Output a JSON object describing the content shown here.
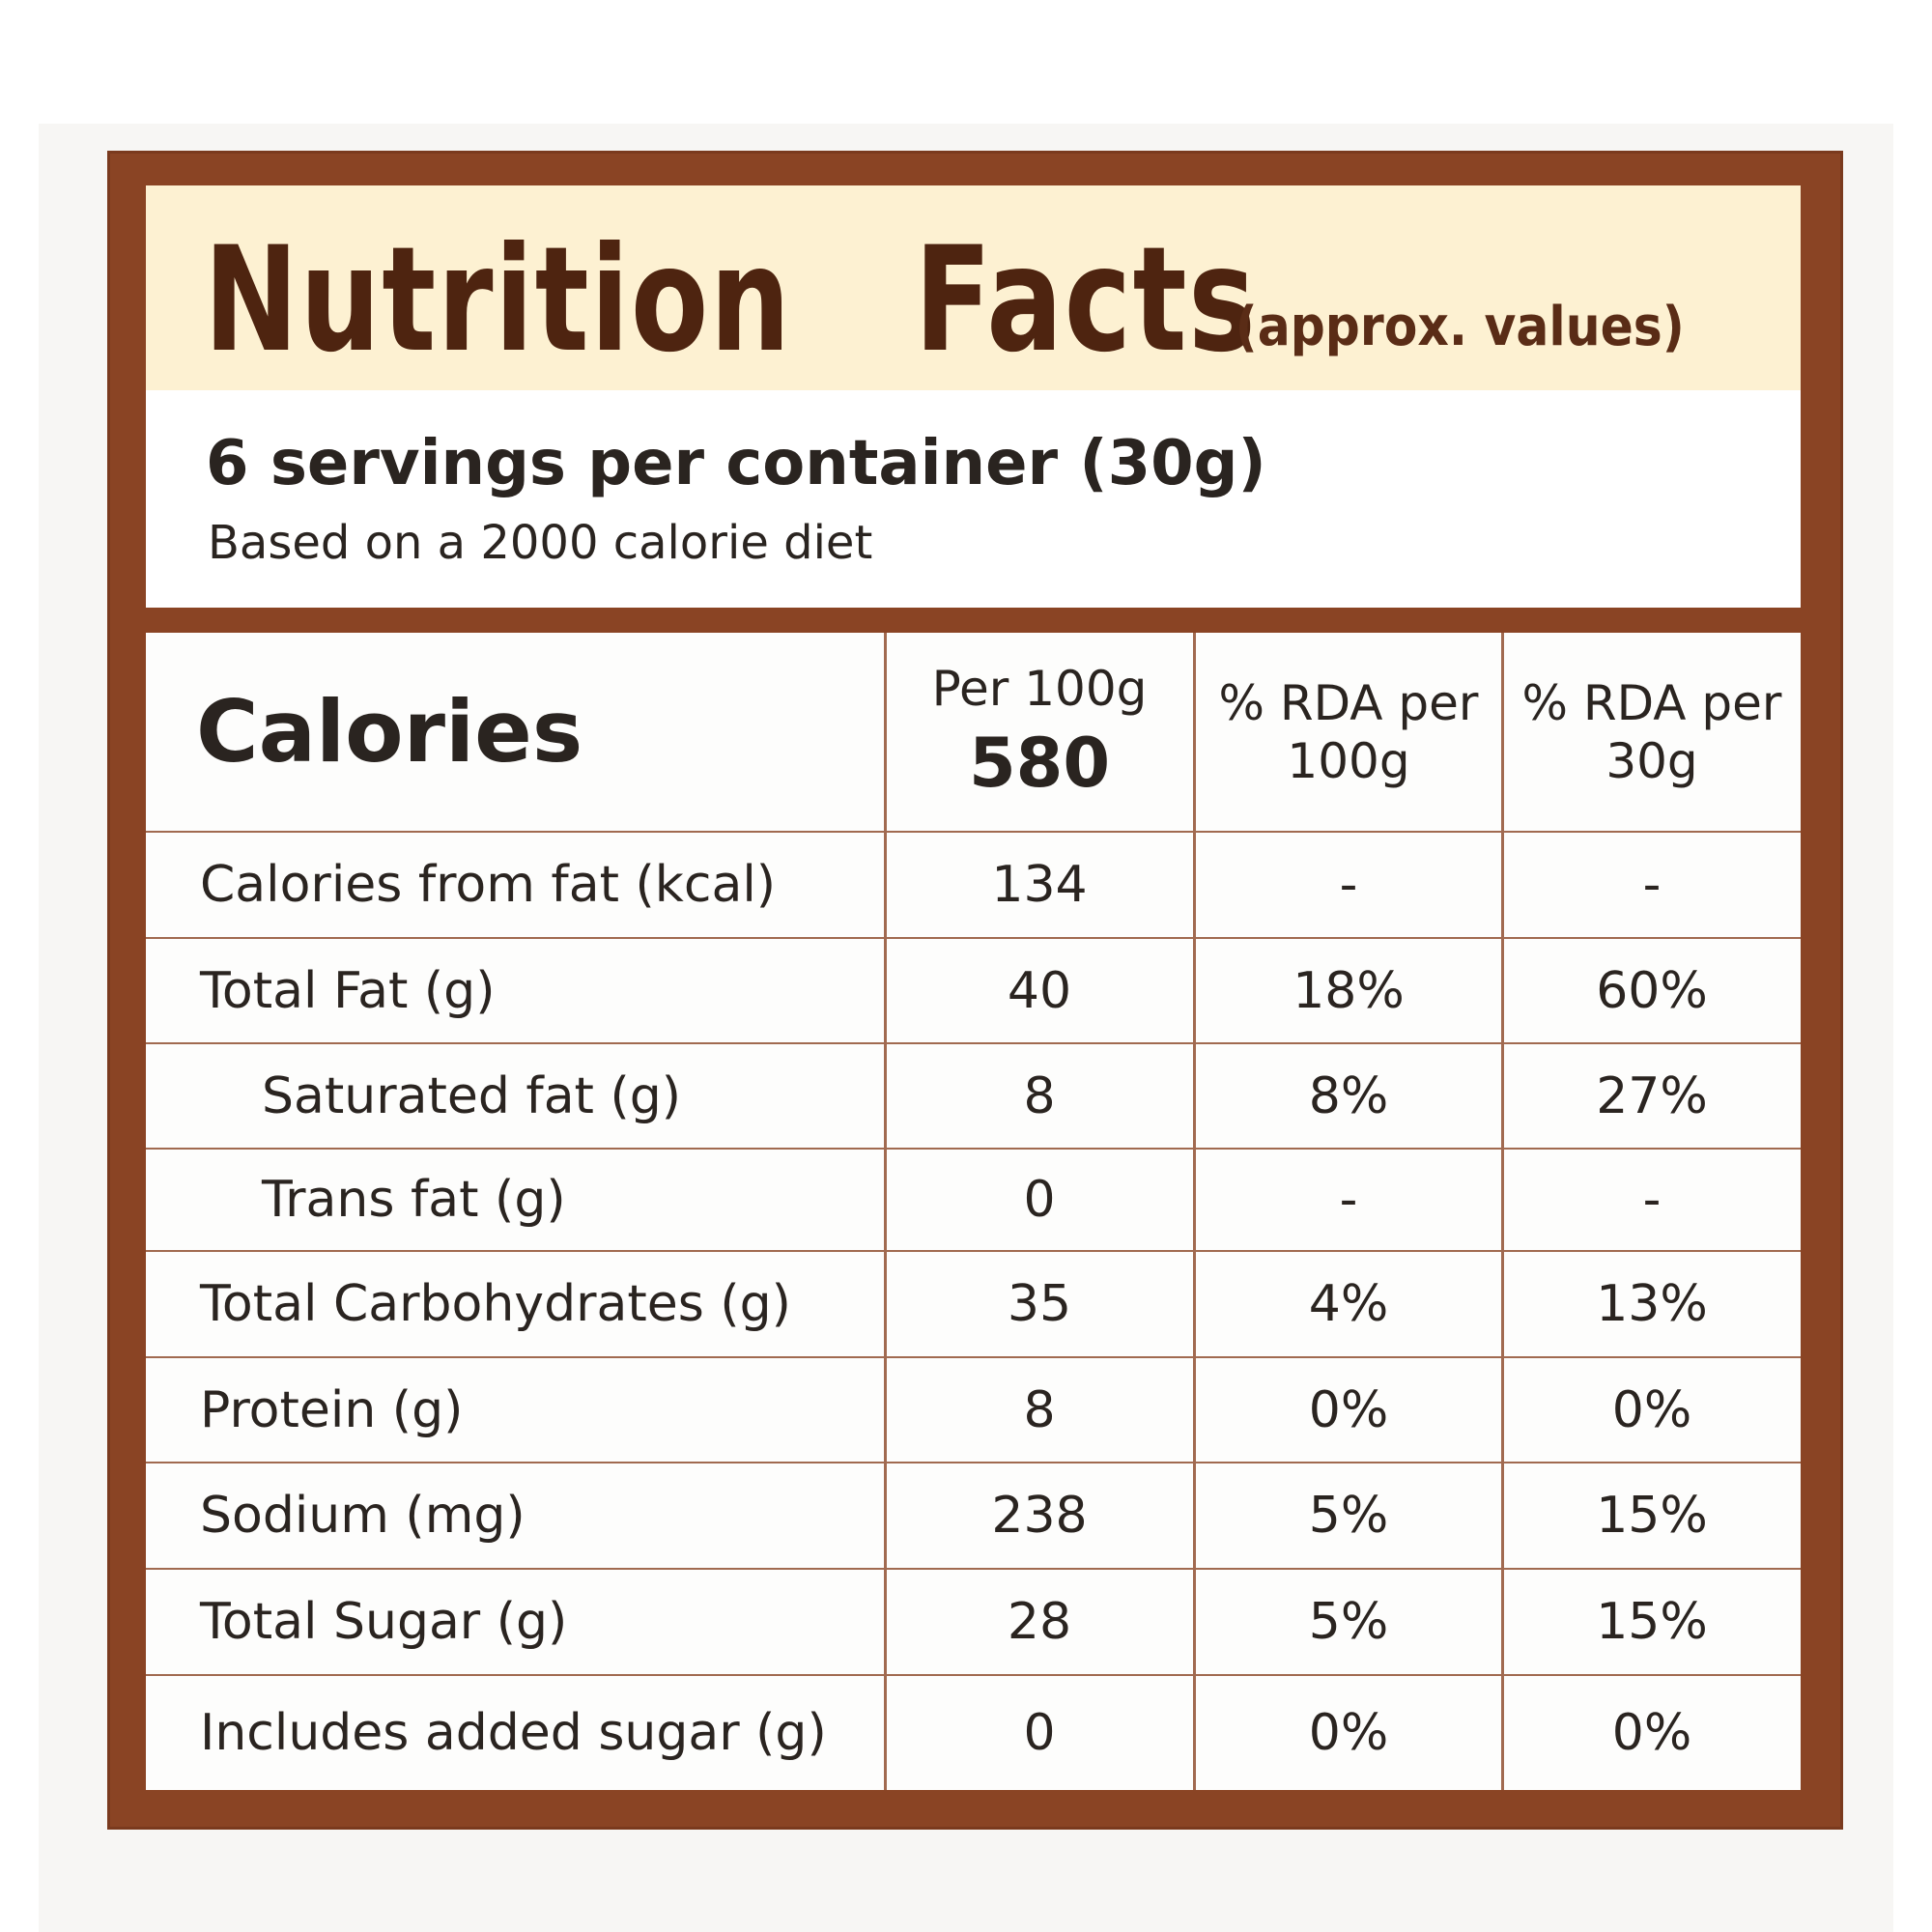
{
  "header": {
    "title": "Nutrition   Facts",
    "subtitle": "(approx. values)",
    "servings": "6 servings per container (30g)",
    "basis": "Based on a 2000 calorie diet"
  },
  "table": {
    "calories_label": "Calories",
    "col1_header": "Per 100g",
    "calories_value": "580",
    "col2_header_line1": "% RDA per",
    "col2_header_line2": "100g",
    "col3_header_line1": "% RDA per",
    "col3_header_line2": "30g",
    "rows": [
      {
        "label": "Calories from fat (kcal)",
        "per100g": "134",
        "rda100g": "-",
        "rda30g": "-"
      },
      {
        "label": "Total Fat (g)",
        "per100g": "40",
        "rda100g": "18%",
        "rda30g": "60%"
      },
      {
        "label": "Saturated fat (g)",
        "per100g": "8",
        "rda100g": "8%",
        "rda30g": "27%"
      },
      {
        "label": "Trans fat (g)",
        "per100g": "0",
        "rda100g": "-",
        "rda30g": "-"
      },
      {
        "label": "Total Carbohydrates (g)",
        "per100g": "35",
        "rda100g": "4%",
        "rda30g": "13%"
      },
      {
        "label": "Protein (g)",
        "per100g": "8",
        "rda100g": "0%",
        "rda30g": "0%"
      },
      {
        "label": "Sodium (mg)",
        "per100g": "238",
        "rda100g": "5%",
        "rda30g": "15%"
      },
      {
        "label": "Total Sugar (g)",
        "per100g": "28",
        "rda100g": "5%",
        "rda30g": "15%"
      },
      {
        "label": "Includes added sugar (g)",
        "per100g": "0",
        "rda100g": "0%",
        "rda30g": "0%"
      }
    ]
  },
  "colors": {
    "frame": "#8a4424",
    "title_band": "#fdf1d2",
    "title_text": "#4e2410",
    "rule": "#a16a50"
  }
}
